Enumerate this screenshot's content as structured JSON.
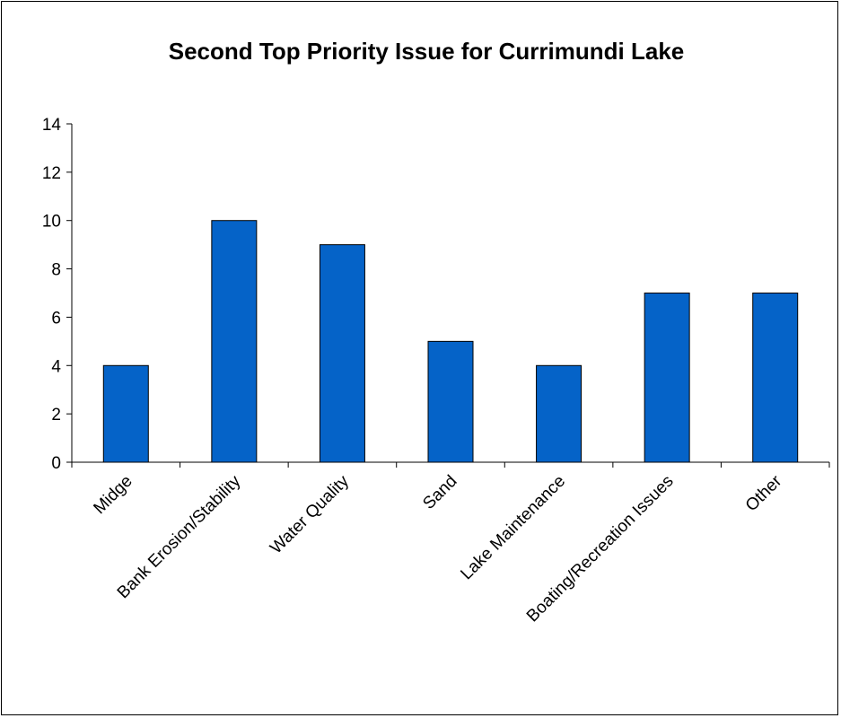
{
  "chart_data": {
    "type": "bar",
    "title": "Second Top Priority Issue for Currimundi Lake",
    "xlabel": "",
    "ylabel": "",
    "categories": [
      "Midge",
      "Bank Erosion/Stability",
      "Water Quality",
      "Sand",
      "Lake Maintenance",
      "Boating/Recreation Issues",
      "Other"
    ],
    "values": [
      4,
      10,
      9,
      5,
      4,
      7,
      7
    ],
    "ylim": [
      0,
      14
    ],
    "yticks": [
      0,
      2,
      4,
      6,
      8,
      10,
      12,
      14
    ],
    "grid": false,
    "legend": "none",
    "bar_color": "#0563C8",
    "bar_border_color": "#000000"
  }
}
